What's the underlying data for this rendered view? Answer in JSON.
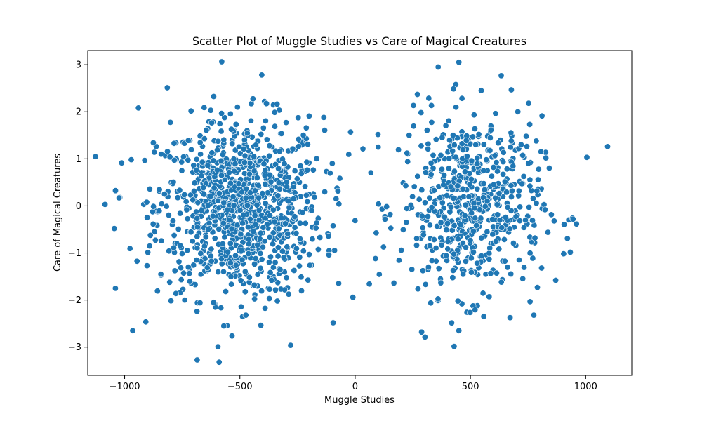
{
  "chart_data": {
    "type": "scatter",
    "title": "Scatter Plot of Muggle Studies vs Care of Magical Creatures",
    "xlabel": "Muggle Studies",
    "ylabel": "Care of Magical Creatures",
    "xlim": [
      -1160,
      1200
    ],
    "ylim": [
      -3.6,
      3.3
    ],
    "xticks": [
      -1000,
      -500,
      0,
      500,
      1000
    ],
    "xtick_labels": [
      "−1000",
      "−500",
      "0",
      "500",
      "1000"
    ],
    "yticks": [
      -3,
      -2,
      -1,
      0,
      1,
      2,
      3
    ],
    "ytick_labels": [
      "−3",
      "−2",
      "−1",
      "0",
      "1",
      "2",
      "3"
    ],
    "grid": false,
    "legend": "none",
    "color": "#1f77b4",
    "clusters": [
      {
        "center": [
          -500,
          -0.05
        ],
        "spread": [
          180,
          0.95
        ],
        "count": 1000
      },
      {
        "center": [
          500,
          0.0
        ],
        "spread": [
          155,
          0.95
        ],
        "count": 600
      }
    ],
    "notable_points": [
      {
        "x": -1085,
        "y": 0.03
      },
      {
        "x": -1045,
        "y": -0.48
      },
      {
        "x": -1040,
        "y": -1.75
      },
      {
        "x": -965,
        "y": -2.65
      },
      {
        "x": -940,
        "y": 2.08
      },
      {
        "x": -815,
        "y": 2.51
      },
      {
        "x": -590,
        "y": -3.32
      },
      {
        "x": -595,
        "y": -2.99
      },
      {
        "x": -405,
        "y": 2.78
      },
      {
        "x": -280,
        "y": -2.96
      },
      {
        "x": -20,
        "y": 1.57
      },
      {
        "x": 360,
        "y": 2.95
      },
      {
        "x": 450,
        "y": 3.05
      },
      {
        "x": 450,
        "y": -2.65
      },
      {
        "x": 775,
        "y": -2.32
      },
      {
        "x": 1005,
        "y": 1.03
      },
      {
        "x": 1095,
        "y": 1.26
      },
      {
        "x": 870,
        "y": -1.58
      },
      {
        "x": 945,
        "y": -0.28
      },
      {
        "x": 100,
        "y": 1.25
      }
    ]
  }
}
